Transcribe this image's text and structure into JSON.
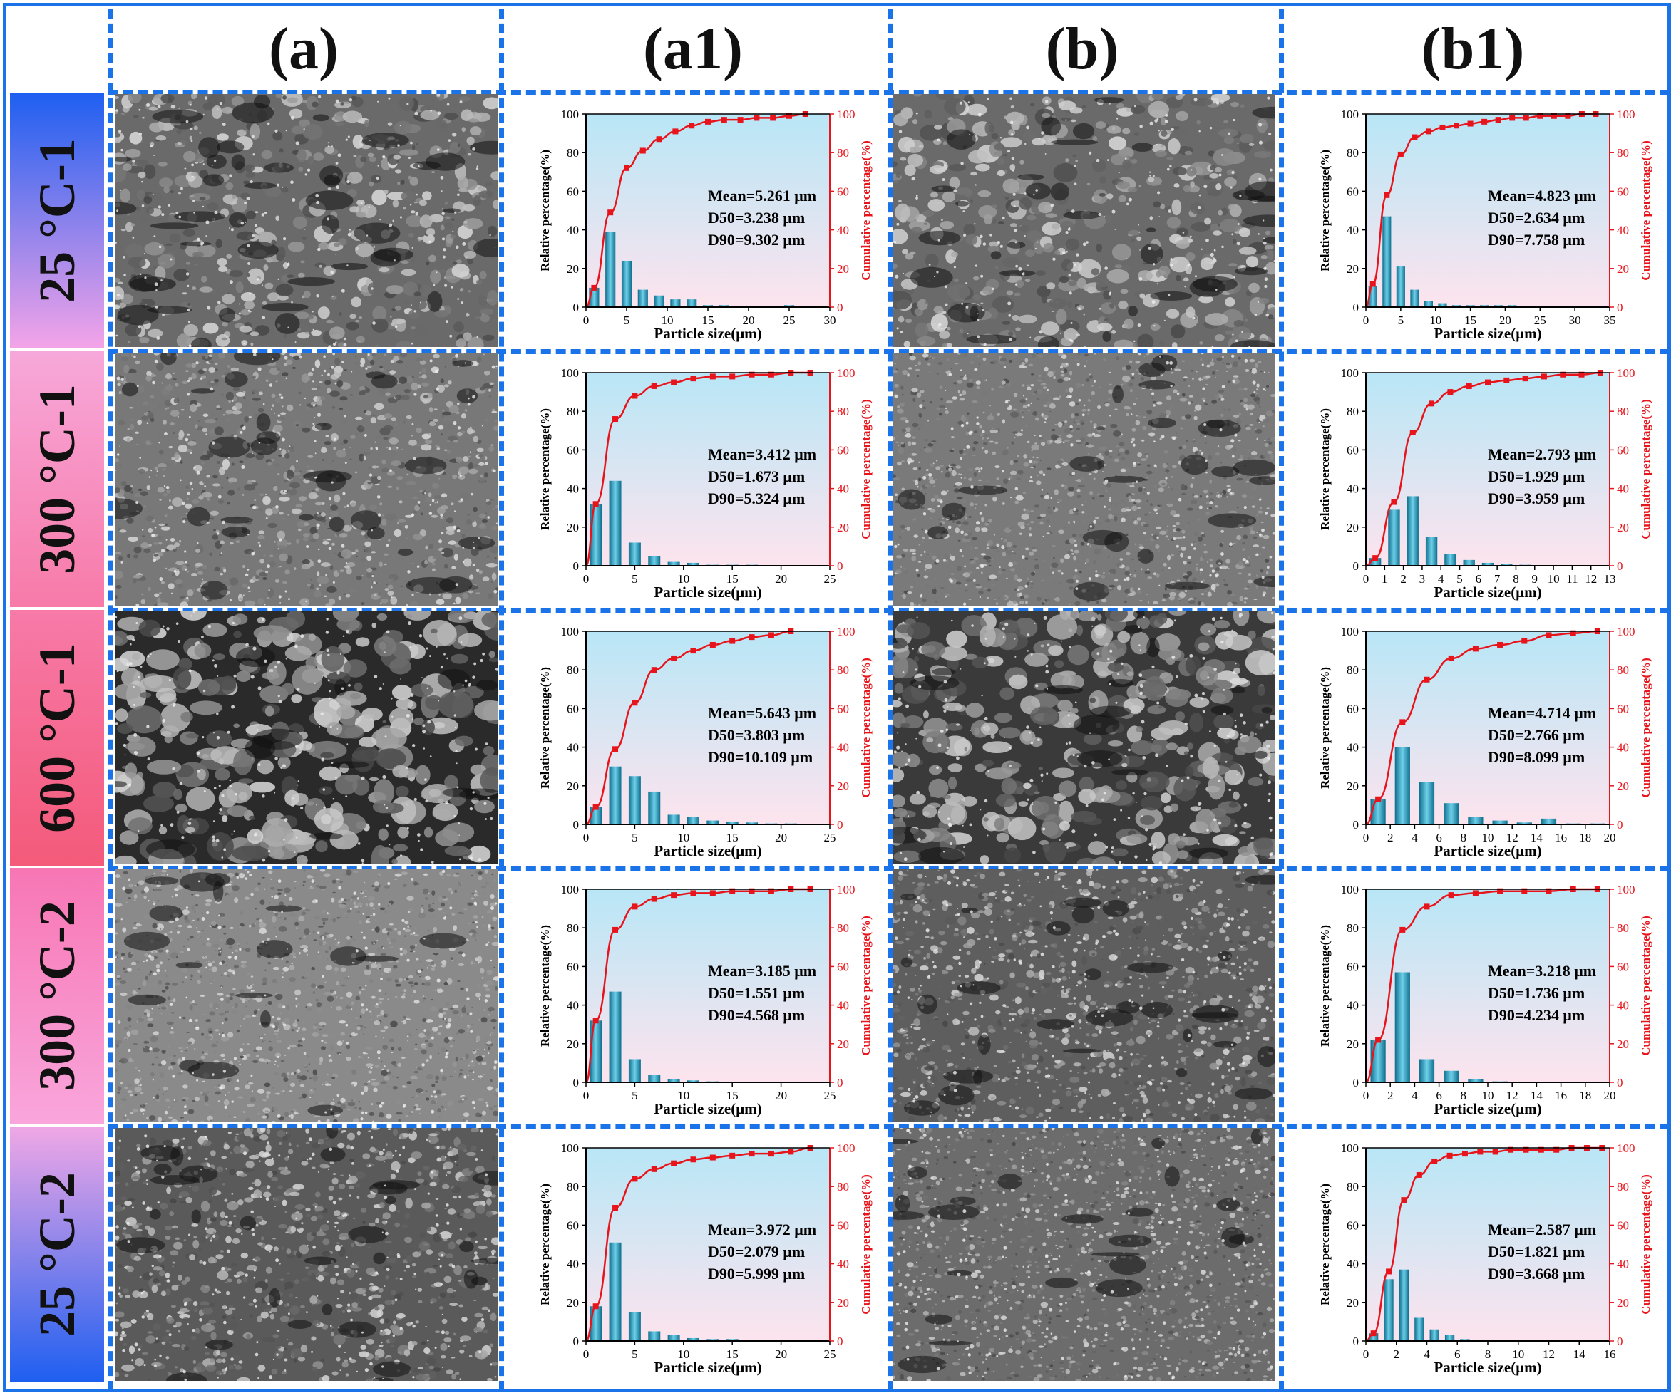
{
  "column_headers": [
    "(a)",
    "(a1)",
    "(b)",
    "(b1)"
  ],
  "row_labels": [
    "25 °C-1",
    "300 °C-1",
    "600 °C-1",
    "300 °C-2",
    "25 °C-2"
  ],
  "colors": {
    "frame": "#1a73e8",
    "bar": "#1d8fb0",
    "fit_curve": "#e8141b",
    "cumulative_axis": "#e8141b",
    "plot_bg_top": "#b8e6f6",
    "plot_bg_bottom": "#fde4ee"
  },
  "chart_data": [
    {
      "panel": "a1",
      "row": "25 °C-1",
      "type": "bar",
      "xlabel": "Particle size(μm)",
      "ylabel": "Relative percentage(%)",
      "y2label": "Cumulative percentage(%)",
      "xlim": [
        0,
        30
      ],
      "xticks": [
        0,
        5,
        10,
        15,
        20,
        25,
        30
      ],
      "ylim": [
        0,
        100
      ],
      "yticks": [
        0,
        20,
        40,
        60,
        80,
        100
      ],
      "series": [
        {
          "type": "bar",
          "x": [
            1,
            3,
            5,
            7,
            9,
            11,
            13,
            15,
            17,
            19,
            21,
            23,
            25,
            27
          ],
          "values": [
            10,
            39,
            24,
            9,
            6,
            4,
            4,
            1,
            1,
            0.5,
            0.5,
            0.3,
            1,
            0.3
          ]
        },
        {
          "type": "line",
          "name": "cumulative",
          "x": [
            1,
            3,
            5,
            7,
            9,
            11,
            13,
            15,
            17,
            19,
            21,
            23,
            25,
            27
          ],
          "values": [
            10,
            49,
            72,
            81,
            87,
            91,
            94,
            96,
            97,
            97,
            98,
            98,
            99,
            100
          ]
        }
      ],
      "annotations": [
        "Mean=5.261 μm",
        "D50=3.238 μm",
        "D90=9.302 μm"
      ]
    },
    {
      "panel": "b1",
      "row": "25 °C-1",
      "type": "bar",
      "xlabel": "Particle size(μm)",
      "ylabel": "Relative percentage(%)",
      "y2label": "Cumulative percentage(%)",
      "xlim": [
        0,
        35
      ],
      "xticks": [
        0,
        5,
        10,
        15,
        20,
        25,
        30,
        35
      ],
      "ylim": [
        0,
        100
      ],
      "yticks": [
        0,
        20,
        40,
        60,
        80,
        100
      ],
      "series": [
        {
          "type": "bar",
          "x": [
            1,
            3,
            5,
            7,
            9,
            11,
            13,
            15,
            17,
            19,
            21,
            23,
            25,
            27,
            29,
            31,
            33
          ],
          "values": [
            11,
            47,
            21,
            9,
            3,
            2,
            1,
            1,
            1,
            1,
            1,
            0.3,
            0.3,
            0.3,
            0.3,
            0.3,
            0.3
          ]
        },
        {
          "type": "line",
          "name": "cumulative",
          "x": [
            1,
            3,
            5,
            7,
            9,
            11,
            13,
            15,
            17,
            19,
            21,
            23,
            25,
            27,
            29,
            31,
            33
          ],
          "values": [
            12,
            58,
            79,
            88,
            91,
            93,
            94,
            95,
            96,
            97,
            98,
            98,
            99,
            99,
            99,
            100,
            100
          ]
        }
      ],
      "annotations": [
        "Mean=4.823 μm",
        "D50=2.634 μm",
        "D90=7.758 μm"
      ]
    },
    {
      "panel": "a1",
      "row": "300 °C-1",
      "type": "bar",
      "xlabel": "Particle size(μm)",
      "ylabel": "Relative percentage(%)",
      "y2label": "Cumulative percentage(%)",
      "xlim": [
        0,
        25
      ],
      "xticks": [
        0,
        5,
        10,
        15,
        20,
        25
      ],
      "ylim": [
        0,
        100
      ],
      "yticks": [
        0,
        20,
        40,
        60,
        80,
        100
      ],
      "series": [
        {
          "type": "bar",
          "x": [
            1,
            3,
            5,
            7,
            9,
            11,
            13,
            15,
            17,
            19,
            21,
            23
          ],
          "values": [
            32,
            44,
            12,
            5,
            2,
            1.5,
            0.5,
            0.5,
            0.5,
            0.3,
            0.3,
            0.3
          ]
        },
        {
          "type": "line",
          "name": "cumulative",
          "x": [
            1,
            3,
            5,
            7,
            9,
            11,
            13,
            15,
            17,
            19,
            21,
            23
          ],
          "values": [
            32,
            76,
            88,
            93,
            95,
            97,
            98,
            98,
            99,
            99,
            100,
            100
          ]
        }
      ],
      "annotations": [
        "Mean=3.412 μm",
        "D50=1.673 μm",
        "D90=5.324 μm"
      ]
    },
    {
      "panel": "b1",
      "row": "300 °C-1",
      "type": "bar",
      "xlabel": "Particle size(μm)",
      "ylabel": "Relative percentage(%)",
      "y2label": "Cumulative percentage(%)",
      "xlim": [
        0,
        13
      ],
      "xticks": [
        0,
        1,
        2,
        3,
        4,
        5,
        6,
        7,
        8,
        9,
        10,
        11,
        12,
        13
      ],
      "ylim": [
        0,
        100
      ],
      "yticks": [
        0,
        20,
        40,
        60,
        80,
        100
      ],
      "series": [
        {
          "type": "bar",
          "x": [
            0.5,
            1.5,
            2.5,
            3.5,
            4.5,
            5.5,
            6.5,
            7.5,
            8.5,
            9.5,
            10.5,
            11.5,
            12.5
          ],
          "values": [
            4,
            29,
            36,
            15,
            6,
            3,
            1.5,
            1,
            0.5,
            0.3,
            0.3,
            0.3,
            0.3
          ]
        },
        {
          "type": "line",
          "name": "cumulative",
          "x": [
            0.5,
            1.5,
            2.5,
            3.5,
            4.5,
            5.5,
            6.5,
            7.5,
            8.5,
            9.5,
            10.5,
            11.5,
            12.5
          ],
          "values": [
            4,
            33,
            69,
            84,
            90,
            93,
            95,
            96,
            97,
            98,
            99,
            99,
            100
          ]
        }
      ],
      "annotations": [
        "Mean=2.793 μm",
        "D50=1.929 μm",
        "D90=3.959 μm"
      ]
    },
    {
      "panel": "a1",
      "row": "600 °C-1",
      "type": "bar",
      "xlabel": "Particle size(μm)",
      "ylabel": "Relative percentage(%)",
      "y2label": "Cumulative percentage(%)",
      "xlim": [
        0,
        25
      ],
      "xticks": [
        0,
        5,
        10,
        15,
        20,
        25
      ],
      "ylim": [
        0,
        100
      ],
      "yticks": [
        0,
        20,
        40,
        60,
        80,
        100
      ],
      "series": [
        {
          "type": "bar",
          "x": [
            1,
            3,
            5,
            7,
            9,
            11,
            13,
            15,
            17,
            19,
            21
          ],
          "values": [
            9,
            30,
            25,
            17,
            5,
            4,
            2,
            1.5,
            1,
            0.5,
            0.5
          ]
        },
        {
          "type": "line",
          "name": "cumulative",
          "x": [
            1,
            3,
            5,
            7,
            9,
            11,
            13,
            15,
            17,
            19,
            21
          ],
          "values": [
            9,
            39,
            63,
            80,
            86,
            90,
            93,
            95,
            97,
            98,
            100
          ]
        }
      ],
      "annotations": [
        "Mean=5.643 μm",
        "D50=3.803 μm",
        "D90=10.109 μm"
      ]
    },
    {
      "panel": "b1",
      "row": "600 °C-1",
      "type": "bar",
      "xlabel": "Particle size(μm)",
      "ylabel": "Relative percentage(%)",
      "y2label": "Cumulative percentage(%)",
      "xlim": [
        0,
        20
      ],
      "xticks": [
        0,
        2,
        4,
        6,
        8,
        10,
        12,
        14,
        16,
        18,
        20
      ],
      "ylim": [
        0,
        100
      ],
      "yticks": [
        0,
        20,
        40,
        60,
        80,
        100
      ],
      "series": [
        {
          "type": "bar",
          "x": [
            1,
            3,
            5,
            7,
            9,
            11,
            13,
            15,
            17,
            19
          ],
          "values": [
            13,
            40,
            22,
            11,
            4,
            2,
            1,
            3,
            0.5,
            0.5
          ]
        },
        {
          "type": "line",
          "name": "cumulative",
          "x": [
            1,
            3,
            5,
            7,
            9,
            11,
            13,
            15,
            17,
            19
          ],
          "values": [
            13,
            53,
            75,
            86,
            91,
            93,
            95,
            98,
            99,
            100
          ]
        }
      ],
      "annotations": [
        "Mean=4.714 μm",
        "D50=2.766 μm",
        "D90=8.099 μm"
      ]
    },
    {
      "panel": "a1",
      "row": "300 °C-2",
      "type": "bar",
      "xlabel": "Particle size(μm)",
      "ylabel": "Relative percentage(%)",
      "y2label": "Cumulative percentage(%)",
      "xlim": [
        0,
        25
      ],
      "xticks": [
        0,
        5,
        10,
        15,
        20,
        25
      ],
      "ylim": [
        0,
        100
      ],
      "yticks": [
        0,
        20,
        40,
        60,
        80,
        100
      ],
      "series": [
        {
          "type": "bar",
          "x": [
            1,
            3,
            5,
            7,
            9,
            11,
            13,
            15,
            17,
            19,
            21,
            23
          ],
          "values": [
            32,
            47,
            12,
            4,
            1.5,
            1,
            0.5,
            0.3,
            0.3,
            0.3,
            0.3,
            0.3
          ]
        },
        {
          "type": "line",
          "name": "cumulative",
          "x": [
            1,
            3,
            5,
            7,
            9,
            11,
            13,
            15,
            17,
            19,
            21,
            23
          ],
          "values": [
            32,
            79,
            91,
            95,
            97,
            98,
            98,
            99,
            99,
            99,
            100,
            100
          ]
        }
      ],
      "annotations": [
        "Mean=3.185 μm",
        "D50=1.551 μm",
        "D90=4.568 μm"
      ]
    },
    {
      "panel": "b1",
      "row": "300 °C-2",
      "type": "bar",
      "xlabel": "Particle size(μm)",
      "ylabel": "Relative percentage(%)",
      "y2label": "Cumulative percentage(%)",
      "xlim": [
        0,
        20
      ],
      "xticks": [
        0,
        2,
        4,
        6,
        8,
        10,
        12,
        14,
        16,
        18,
        20
      ],
      "ylim": [
        0,
        100
      ],
      "yticks": [
        0,
        20,
        40,
        60,
        80,
        100
      ],
      "series": [
        {
          "type": "bar",
          "x": [
            1,
            3,
            5,
            7,
            9,
            11,
            13,
            15,
            17,
            19
          ],
          "values": [
            22,
            57,
            12,
            6,
            1.5,
            0.5,
            0.3,
            0.3,
            0.3,
            0.3
          ]
        },
        {
          "type": "line",
          "name": "cumulative",
          "x": [
            1,
            3,
            5,
            7,
            9,
            11,
            13,
            15,
            17,
            19
          ],
          "values": [
            22,
            79,
            91,
            97,
            98,
            99,
            99,
            99,
            100,
            100
          ]
        }
      ],
      "annotations": [
        "Mean=3.218 μm",
        "D50=1.736 μm",
        "D90=4.234 μm"
      ]
    },
    {
      "panel": "a1",
      "row": "25 °C-2",
      "type": "bar",
      "xlabel": "Particle size(μm)",
      "ylabel": "Relative percentage(%)",
      "y2label": "Cumulative percentage(%)",
      "xlim": [
        0,
        25
      ],
      "xticks": [
        0,
        5,
        10,
        15,
        20,
        25
      ],
      "ylim": [
        0,
        100
      ],
      "yticks": [
        0,
        20,
        40,
        60,
        80,
        100
      ],
      "series": [
        {
          "type": "bar",
          "x": [
            1,
            3,
            5,
            7,
            9,
            11,
            13,
            15,
            17,
            19,
            21,
            23
          ],
          "values": [
            18,
            51,
            15,
            5,
            3,
            1.5,
            1,
            1,
            0.5,
            0.5,
            0.3,
            0.5
          ]
        },
        {
          "type": "line",
          "name": "cumulative",
          "x": [
            1,
            3,
            5,
            7,
            9,
            11,
            13,
            15,
            17,
            19,
            21,
            23
          ],
          "values": [
            18,
            69,
            84,
            89,
            92,
            94,
            95,
            96,
            97,
            97,
            98,
            100
          ]
        }
      ],
      "annotations": [
        "Mean=3.972 μm",
        "D50=2.079 μm",
        "D90=5.999 μm"
      ]
    },
    {
      "panel": "b1",
      "row": "25 °C-2",
      "type": "bar",
      "xlabel": "Particle size(μm)",
      "ylabel": "Relative percentage(%)",
      "y2label": "Cumulative percentage(%)",
      "xlim": [
        0,
        16
      ],
      "xticks": [
        0,
        2,
        4,
        6,
        8,
        10,
        12,
        14,
        16
      ],
      "ylim": [
        0,
        100
      ],
      "yticks": [
        0,
        20,
        40,
        60,
        80,
        100
      ],
      "series": [
        {
          "type": "bar",
          "x": [
            0.5,
            1.5,
            2.5,
            3.5,
            4.5,
            5.5,
            6.5,
            7.5,
            8.5,
            9.5,
            10.5,
            11.5,
            12.5,
            13.5,
            14.5,
            15.5
          ],
          "values": [
            4,
            32,
            37,
            12,
            6,
            3,
            1,
            0.5,
            0.5,
            0.3,
            0.3,
            0.3,
            0.3,
            0.3,
            0.3,
            0.3
          ]
        },
        {
          "type": "line",
          "name": "cumulative",
          "x": [
            0.5,
            1.5,
            2.5,
            3.5,
            4.5,
            5.5,
            6.5,
            7.5,
            8.5,
            9.5,
            10.5,
            11.5,
            12.5,
            13.5,
            14.5,
            15.5
          ],
          "values": [
            4,
            36,
            73,
            86,
            93,
            96,
            97,
            98,
            98,
            99,
            99,
            99,
            99,
            100,
            100,
            100
          ]
        }
      ],
      "annotations": [
        "Mean=2.587 μm",
        "D50=1.821 μm",
        "D90=3.668 μm"
      ]
    }
  ]
}
